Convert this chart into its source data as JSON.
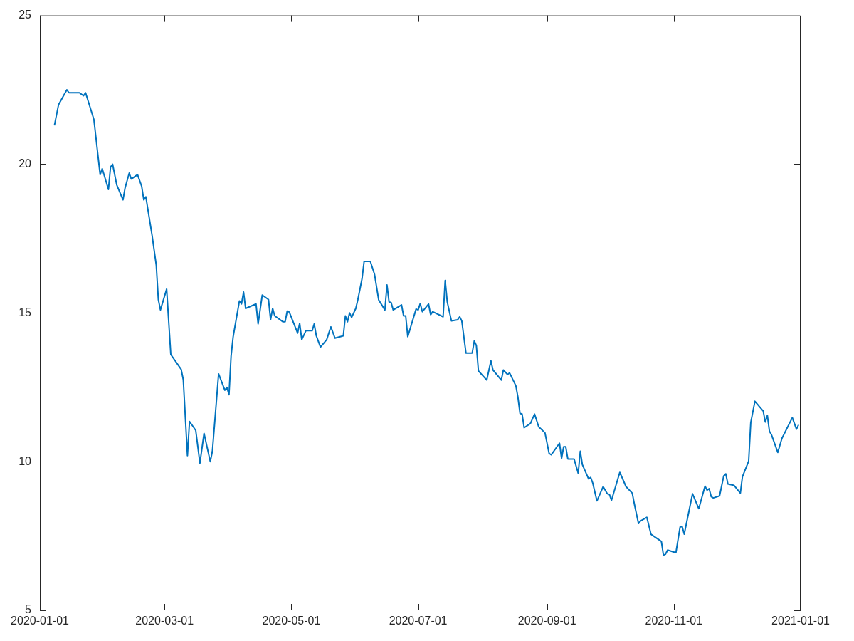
{
  "chart_data": {
    "type": "line",
    "color": "#0072bd",
    "marker": "none",
    "line_style": "solid",
    "xlim": [
      "2020-01-01",
      "2021-01-01"
    ],
    "ylim": [
      5,
      25
    ],
    "xticks": [
      "2020-01-01",
      "2020-03-01",
      "2020-05-01",
      "2020-07-01",
      "2020-09-01",
      "2020-11-01",
      "2021-01-01"
    ],
    "yticks": [
      5,
      10,
      15,
      20,
      25
    ],
    "x": [
      "2020-01-08",
      "2020-01-10",
      "2020-01-14",
      "2020-01-15",
      "2020-01-17",
      "2020-01-20",
      "2020-01-22",
      "2020-01-23",
      "2020-01-27",
      "2020-01-30",
      "2020-01-31",
      "2020-02-03",
      "2020-02-04",
      "2020-02-05",
      "2020-02-07",
      "2020-02-10",
      "2020-02-11",
      "2020-02-13",
      "2020-02-14",
      "2020-02-17",
      "2020-02-19",
      "2020-02-20",
      "2020-02-21",
      "2020-02-24",
      "2020-02-26",
      "2020-02-27",
      "2020-02-28",
      "2020-03-02",
      "2020-03-04",
      "2020-03-09",
      "2020-03-10",
      "2020-03-12",
      "2020-03-13",
      "2020-03-16",
      "2020-03-18",
      "2020-03-20",
      "2020-03-23",
      "2020-03-24",
      "2020-03-27",
      "2020-03-30",
      "2020-03-31",
      "2020-04-01",
      "2020-04-02",
      "2020-04-03",
      "2020-04-06",
      "2020-04-07",
      "2020-04-08",
      "2020-04-09",
      "2020-04-14",
      "2020-04-15",
      "2020-04-17",
      "2020-04-20",
      "2020-04-21",
      "2020-04-22",
      "2020-04-23",
      "2020-04-27",
      "2020-04-28",
      "2020-04-29",
      "2020-04-30",
      "2020-05-04",
      "2020-05-05",
      "2020-05-06",
      "2020-05-08",
      "2020-05-11",
      "2020-05-12",
      "2020-05-13",
      "2020-05-15",
      "2020-05-18",
      "2020-05-20",
      "2020-05-22",
      "2020-05-26",
      "2020-05-27",
      "2020-05-28",
      "2020-05-29",
      "2020-05-30",
      "2020-06-01",
      "2020-06-02",
      "2020-06-04",
      "2020-06-05",
      "2020-06-08",
      "2020-06-10",
      "2020-06-12",
      "2020-06-15",
      "2020-06-16",
      "2020-06-17",
      "2020-06-18",
      "2020-06-19",
      "2020-06-23",
      "2020-06-24",
      "2020-06-25",
      "2020-06-26",
      "2020-06-30",
      "2020-07-01",
      "2020-07-02",
      "2020-07-03",
      "2020-07-06",
      "2020-07-07",
      "2020-07-08",
      "2020-07-13",
      "2020-07-14",
      "2020-07-15",
      "2020-07-17",
      "2020-07-20",
      "2020-07-21",
      "2020-07-22",
      "2020-07-24",
      "2020-07-27",
      "2020-07-28",
      "2020-07-29",
      "2020-07-30",
      "2020-08-03",
      "2020-08-05",
      "2020-08-06",
      "2020-08-10",
      "2020-08-11",
      "2020-08-13",
      "2020-08-14",
      "2020-08-17",
      "2020-08-18",
      "2020-08-19",
      "2020-08-20",
      "2020-08-21",
      "2020-08-24",
      "2020-08-26",
      "2020-08-28",
      "2020-08-31",
      "2020-09-02",
      "2020-09-03",
      "2020-09-07",
      "2020-09-08",
      "2020-09-09",
      "2020-09-10",
      "2020-09-11",
      "2020-09-14",
      "2020-09-16",
      "2020-09-17",
      "2020-09-18",
      "2020-09-21",
      "2020-09-22",
      "2020-09-23",
      "2020-09-25",
      "2020-09-28",
      "2020-09-30",
      "2020-10-01",
      "2020-10-02",
      "2020-10-06",
      "2020-10-09",
      "2020-10-12",
      "2020-10-13",
      "2020-10-15",
      "2020-10-16",
      "2020-10-19",
      "2020-10-21",
      "2020-10-26",
      "2020-10-27",
      "2020-10-28",
      "2020-10-29",
      "2020-11-02",
      "2020-11-04",
      "2020-11-05",
      "2020-11-06",
      "2020-11-10",
      "2020-11-13",
      "2020-11-16",
      "2020-11-17",
      "2020-11-18",
      "2020-11-19",
      "2020-11-20",
      "2020-11-23",
      "2020-11-25",
      "2020-11-26",
      "2020-11-27",
      "2020-11-30",
      "2020-12-03",
      "2020-12-04",
      "2020-12-07",
      "2020-12-08",
      "2020-12-10",
      "2020-12-14",
      "2020-12-15",
      "2020-12-16",
      "2020-12-17",
      "2020-12-18",
      "2020-12-21",
      "2020-12-23",
      "2020-12-28",
      "2020-12-30",
      "2020-12-31"
    ],
    "values": [
      21.3,
      22.0,
      22.5,
      22.4,
      22.4,
      22.4,
      22.3,
      22.4,
      21.5,
      19.65,
      19.85,
      19.15,
      19.9,
      20.0,
      19.3,
      18.8,
      19.2,
      19.7,
      19.5,
      19.65,
      19.25,
      18.8,
      18.9,
      17.6,
      16.6,
      15.45,
      15.1,
      15.8,
      13.6,
      13.1,
      12.75,
      10.2,
      11.35,
      11.05,
      9.95,
      10.95,
      10.0,
      10.35,
      12.95,
      12.4,
      12.5,
      12.25,
      13.55,
      14.2,
      15.4,
      15.3,
      15.7,
      15.15,
      15.3,
      14.63,
      15.6,
      15.45,
      14.77,
      15.15,
      14.9,
      14.7,
      14.7,
      15.06,
      15.03,
      14.32,
      14.65,
      14.1,
      14.4,
      14.4,
      14.63,
      14.23,
      13.85,
      14.1,
      14.53,
      14.15,
      14.23,
      14.9,
      14.7,
      15.0,
      14.85,
      15.15,
      15.45,
      16.15,
      16.73,
      16.73,
      16.3,
      15.44,
      15.1,
      15.94,
      15.37,
      15.35,
      15.1,
      15.27,
      14.9,
      14.9,
      14.2,
      15.13,
      15.1,
      15.32,
      15.04,
      15.3,
      14.94,
      15.04,
      14.87,
      16.09,
      15.37,
      14.73,
      14.77,
      14.87,
      14.73,
      13.65,
      13.65,
      14.06,
      13.9,
      13.05,
      12.74,
      13.39,
      13.08,
      12.74,
      13.08,
      12.93,
      12.98,
      12.55,
      12.17,
      11.62,
      11.6,
      11.14,
      11.28,
      11.6,
      11.17,
      10.97,
      10.28,
      10.23,
      10.62,
      10.11,
      10.5,
      10.5,
      10.09,
      10.09,
      9.61,
      10.35,
      9.9,
      9.42,
      9.47,
      9.28,
      8.68,
      9.16,
      8.92,
      8.9,
      8.7,
      9.64,
      9.16,
      8.94,
      8.58,
      7.92,
      8.01,
      8.13,
      7.56,
      7.32,
      6.86,
      6.89,
      7.03,
      6.94,
      7.8,
      7.82,
      7.56,
      8.92,
      8.42,
      9.18,
      9.04,
      9.09,
      8.82,
      8.78,
      8.85,
      9.52,
      9.59,
      9.25,
      9.2,
      8.94,
      9.49,
      10.02,
      11.31,
      12.03,
      11.7,
      11.33,
      11.55,
      11.02,
      10.9,
      10.31,
      10.78,
      11.48,
      11.09,
      11.24
    ]
  }
}
